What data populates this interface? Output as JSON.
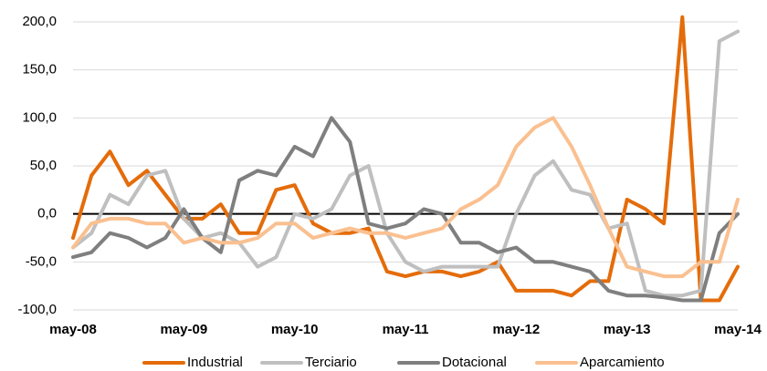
{
  "chart_data": {
    "type": "line",
    "categories": [
      "may-08",
      null,
      null,
      null,
      null,
      null,
      "may-09",
      null,
      null,
      null,
      null,
      null,
      "may-10",
      null,
      null,
      null,
      null,
      null,
      "may-11",
      null,
      null,
      null,
      null,
      null,
      "may-12",
      null,
      null,
      null,
      null,
      null,
      "may-13",
      null,
      null,
      null,
      null,
      null,
      "may-14"
    ],
    "series": [
      {
        "name": "Industrial",
        "color": "#e46c0a",
        "values": [
          -25,
          40,
          65,
          30,
          45,
          20,
          -5,
          -5,
          10,
          -20,
          -20,
          25,
          30,
          -10,
          -20,
          -20,
          -15,
          -60,
          -65,
          -60,
          -60,
          -65,
          -60,
          -50,
          -80,
          -80,
          -80,
          -85,
          -70,
          -70,
          15,
          5,
          -10,
          205,
          -90,
          -90,
          -55
        ]
      },
      {
        "name": "Terciario",
        "color": "#bfbfbf",
        "values": [
          -35,
          -20,
          20,
          10,
          40,
          45,
          -5,
          -25,
          -20,
          -30,
          -55,
          -45,
          0,
          -5,
          5,
          40,
          50,
          -20,
          -50,
          -60,
          -55,
          -55,
          -55,
          -55,
          0,
          40,
          55,
          25,
          20,
          -15,
          -10,
          -80,
          -85,
          -85,
          -80,
          180,
          190
        ]
      },
      {
        "name": "Dotacional",
        "color": "#7f7f7f",
        "values": [
          -45,
          -40,
          -20,
          -25,
          -35,
          -25,
          5,
          -25,
          -40,
          35,
          45,
          40,
          70,
          60,
          100,
          75,
          -10,
          -15,
          -10,
          5,
          0,
          -30,
          -30,
          -40,
          -35,
          -50,
          -50,
          -55,
          -60,
          -80,
          -85,
          -85,
          -87,
          -90,
          -90,
          -20,
          0
        ]
      },
      {
        "name": "Aparcamiento",
        "color": "#fac090",
        "values": [
          -35,
          -10,
          -5,
          -5,
          -10,
          -10,
          -30,
          -25,
          -30,
          -30,
          -25,
          -10,
          -10,
          -25,
          -20,
          -15,
          -20,
          -20,
          -25,
          -20,
          -15,
          5,
          15,
          30,
          70,
          90,
          100,
          70,
          30,
          -15,
          -55,
          -60,
          -65,
          -65,
          -50,
          -50,
          15
        ]
      }
    ],
    "ylim": [
      -100,
      200
    ],
    "yticks": [
      {
        "value": -100,
        "label": "-100,0"
      },
      {
        "value": -50,
        "label": "-50,0"
      },
      {
        "value": 0,
        "label": "0,0"
      },
      {
        "value": 50,
        "label": "50,0"
      },
      {
        "value": 100,
        "label": "100,0"
      },
      {
        "value": 150,
        "label": "150,0"
      },
      {
        "value": 200,
        "label": "200,0"
      }
    ],
    "grid": true,
    "legend": "bottom"
  }
}
